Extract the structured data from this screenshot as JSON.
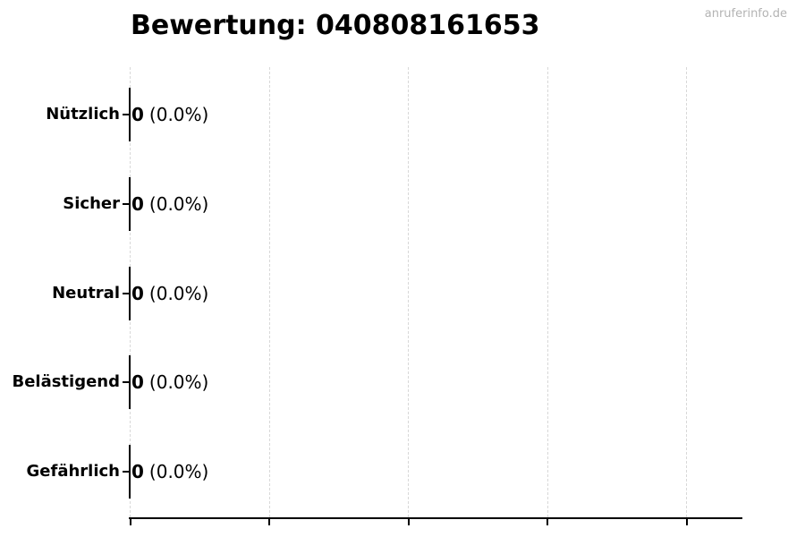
{
  "title": "Bewertung: 040808161653",
  "watermark": "anruferinfo.de",
  "colors": {
    "text": "#000000",
    "axis": "#000000",
    "bar_edge": "#000000",
    "grid": "#d8d8d8",
    "watermark": "#b3b3b3",
    "background": "#ffffff"
  },
  "chart_data": {
    "type": "bar",
    "orientation": "horizontal",
    "title": "Bewertung: 040808161653",
    "categories": [
      "Nützlich",
      "Sicher",
      "Neutral",
      "Belästigend",
      "Gefährlich"
    ],
    "values": [
      0,
      0,
      0,
      0,
      0
    ],
    "value_labels": [
      "0",
      "0",
      "0",
      "0",
      "0"
    ],
    "percent_labels": [
      "(0.0%)",
      "(0.0%)",
      "(0.0%)",
      "(0.0%)",
      "(0.0%)"
    ],
    "xlabel": "",
    "ylabel": "",
    "x_tick_count": 5,
    "x_tick_labels_visible": false,
    "grid": "vertical-dashed",
    "legend": "none"
  }
}
